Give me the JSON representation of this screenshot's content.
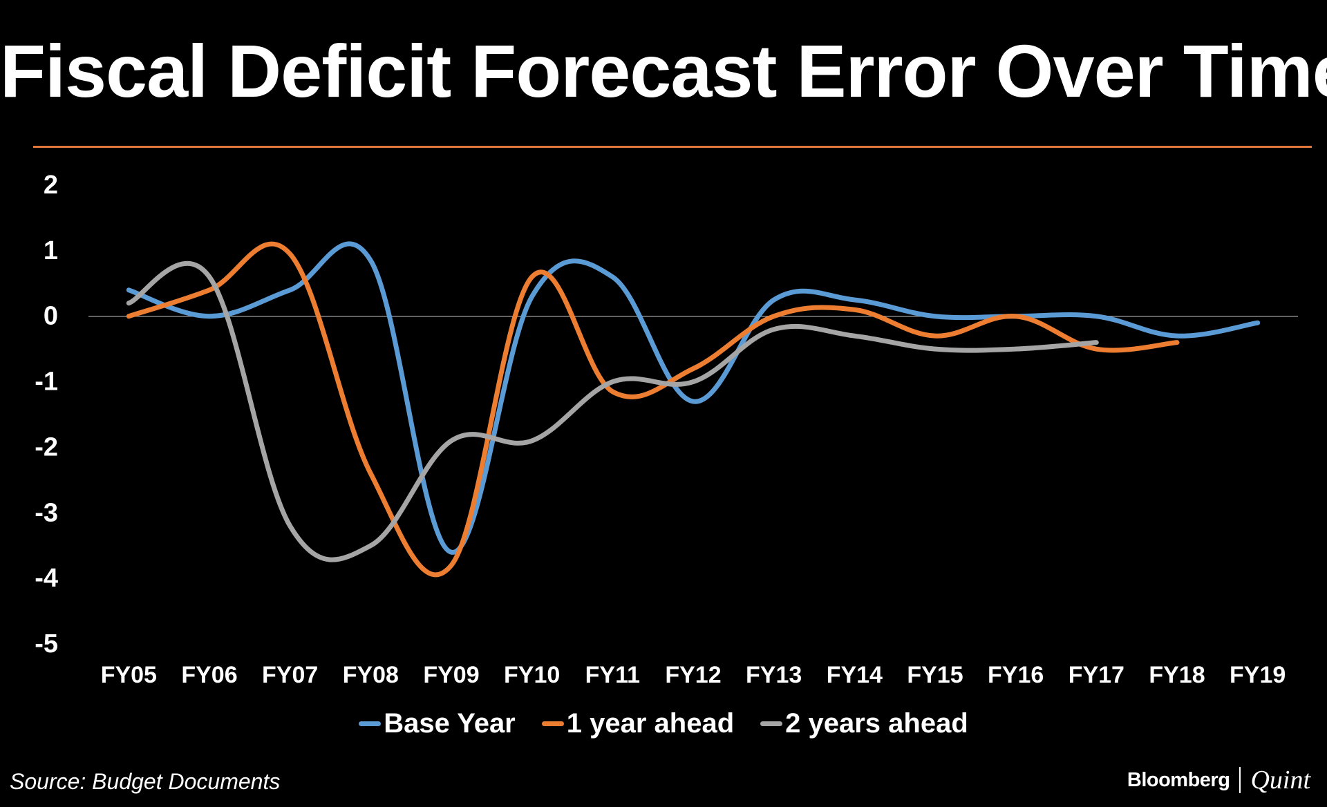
{
  "title": "Fiscal Deficit Forecast Error Over Time",
  "source": "Source: Budget Documents",
  "logo": {
    "left": "Bloomberg",
    "right": "Quint"
  },
  "colors": {
    "background": "#000000",
    "accent_rule": "#e0763a",
    "zero_line": "#8c8c8c"
  },
  "chart_data": {
    "type": "line",
    "title": "Fiscal Deficit Forecast Error Over Time",
    "xlabel": "",
    "ylabel": "",
    "ylim": [
      -5,
      2
    ],
    "yticks": [
      2,
      1,
      0,
      -1,
      -2,
      -3,
      -4,
      -5
    ],
    "categories": [
      "FY05",
      "FY06",
      "FY07",
      "FY08",
      "FY09",
      "FY10",
      "FY11",
      "FY12",
      "FY13",
      "FY14",
      "FY15",
      "FY16",
      "FY17",
      "FY18",
      "FY19"
    ],
    "legend_position": "bottom",
    "series": [
      {
        "name": "Base Year",
        "color": "#5b9bd5",
        "values": [
          0.4,
          0.0,
          0.4,
          0.85,
          -3.6,
          0.3,
          0.6,
          -1.3,
          0.25,
          0.25,
          0.0,
          0.0,
          0.0,
          -0.3,
          -0.1
        ]
      },
      {
        "name": "1 year ahead",
        "color": "#ed7d31",
        "values": [
          0.0,
          0.4,
          0.95,
          -2.4,
          -3.8,
          0.6,
          -1.15,
          -0.8,
          0.0,
          0.1,
          -0.3,
          0.0,
          -0.5,
          -0.4,
          null
        ]
      },
      {
        "name": "2 years ahead",
        "color": "#a5a5a5",
        "values": [
          0.2,
          0.6,
          -3.2,
          -3.5,
          -1.9,
          -1.9,
          -1.0,
          -1.0,
          -0.2,
          -0.3,
          -0.5,
          -0.5,
          -0.4,
          null,
          null
        ]
      }
    ]
  }
}
